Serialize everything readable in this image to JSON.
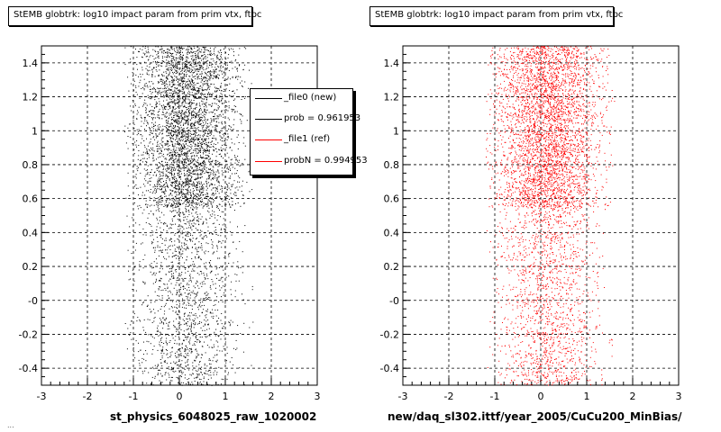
{
  "chart_data": [
    {
      "type": "scatter",
      "title": "StEMB globtrk: log10 impact param from prim vtx, ftpc",
      "xlabel": "st_physics_6048025_raw_1020002",
      "ylabel": "",
      "xlim": [
        -3,
        3
      ],
      "ylim": [
        -0.5,
        1.5
      ],
      "x_ticks": [
        "-3",
        "-2",
        "-1",
        "0",
        "1",
        "2",
        "3"
      ],
      "y_ticks": [
        "-0.4",
        "-0.2",
        "-0",
        "0.2",
        "0.4",
        "0.6",
        "0.8",
        "1",
        "1.2",
        "1.4"
      ],
      "grid": true,
      "marker_color": "#000000",
      "density": {
        "x_core": [
          -1.0,
          1.5
        ],
        "x_max_extent": [
          -1.2,
          1.6
        ],
        "dense_band_y": [
          0.55,
          1.5
        ],
        "sparse_band_y": [
          -0.5,
          0.55
        ]
      }
    },
    {
      "type": "scatter",
      "title": "StEMB globtrk: log10 impact param from prim vtx, ftpc",
      "xlabel": "new/daq_sl302.ittf/year_2005/CuCu200_MinBias/",
      "ylabel": "",
      "xlim": [
        -3,
        3
      ],
      "ylim": [
        -0.5,
        1.5
      ],
      "x_ticks": [
        "-3",
        "-2",
        "-1",
        "0",
        "1",
        "2",
        "3"
      ],
      "y_ticks": [
        "-0.4",
        "-0.2",
        "-0",
        "0.2",
        "0.4",
        "0.6",
        "0.8",
        "1",
        "1.2",
        "1.4"
      ],
      "grid": true,
      "marker_color": "#ff0000",
      "density": {
        "x_core": [
          -1.0,
          1.5
        ],
        "x_max_extent": [
          -1.2,
          1.6
        ],
        "dense_band_y": [
          0.55,
          1.5
        ],
        "sparse_band_y": [
          -0.5,
          0.55
        ]
      }
    }
  ],
  "legend": {
    "entries": [
      {
        "label": "_file0 (new)",
        "color": "#000000"
      },
      {
        "label": "prob = 0.961953",
        "color": "#000000"
      },
      {
        "label": "_file1 (ref)",
        "color": "#ff0000"
      },
      {
        "label": "probN = 0.994953",
        "color": "#ff0000"
      }
    ]
  },
  "footer": "..."
}
